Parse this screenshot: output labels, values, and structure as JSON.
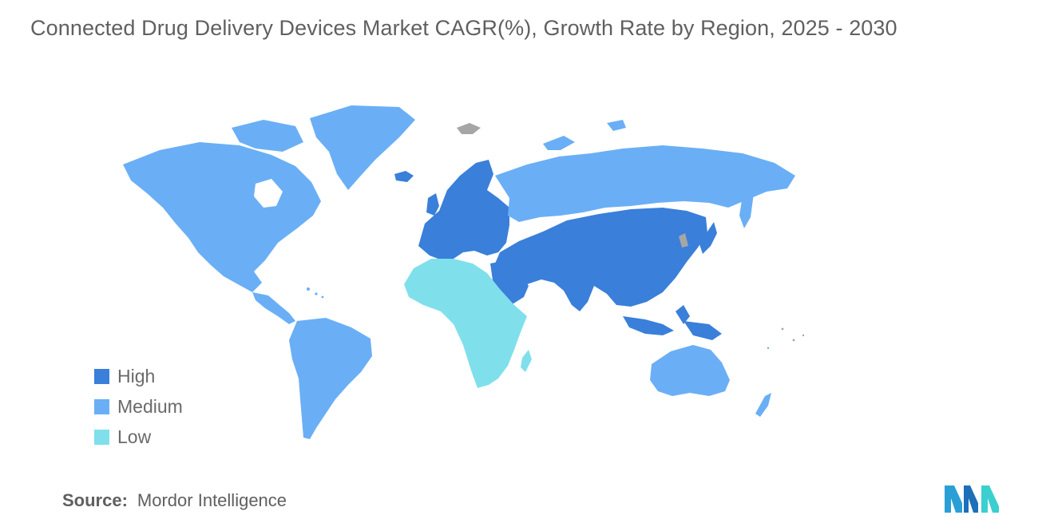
{
  "title": "Connected Drug Delivery Devices Market CAGR(%), Growth Rate by Region, 2025 - 2030",
  "legend": [
    {
      "label": "High",
      "color": "#3a7fd9"
    },
    {
      "label": "Medium",
      "color": "#6aaff5"
    },
    {
      "label": "Low",
      "color": "#7fe0ec"
    }
  ],
  "no_data_color": "#a6a6a6",
  "regions": [
    {
      "name": "North America",
      "level": "Medium"
    },
    {
      "name": "South America",
      "level": "Medium"
    },
    {
      "name": "Europe",
      "level": "High"
    },
    {
      "name": "Asia Pacific",
      "level": "High"
    },
    {
      "name": "Middle East",
      "level": "High"
    },
    {
      "name": "Africa",
      "level": "Low"
    },
    {
      "name": "Russia",
      "level": "Medium"
    },
    {
      "name": "Australia and New Zealand",
      "level": "Medium"
    }
  ],
  "source": {
    "label": "Source:",
    "value": "Mordor Intelligence"
  },
  "logo_icon": "mordor-intelligence-logo"
}
